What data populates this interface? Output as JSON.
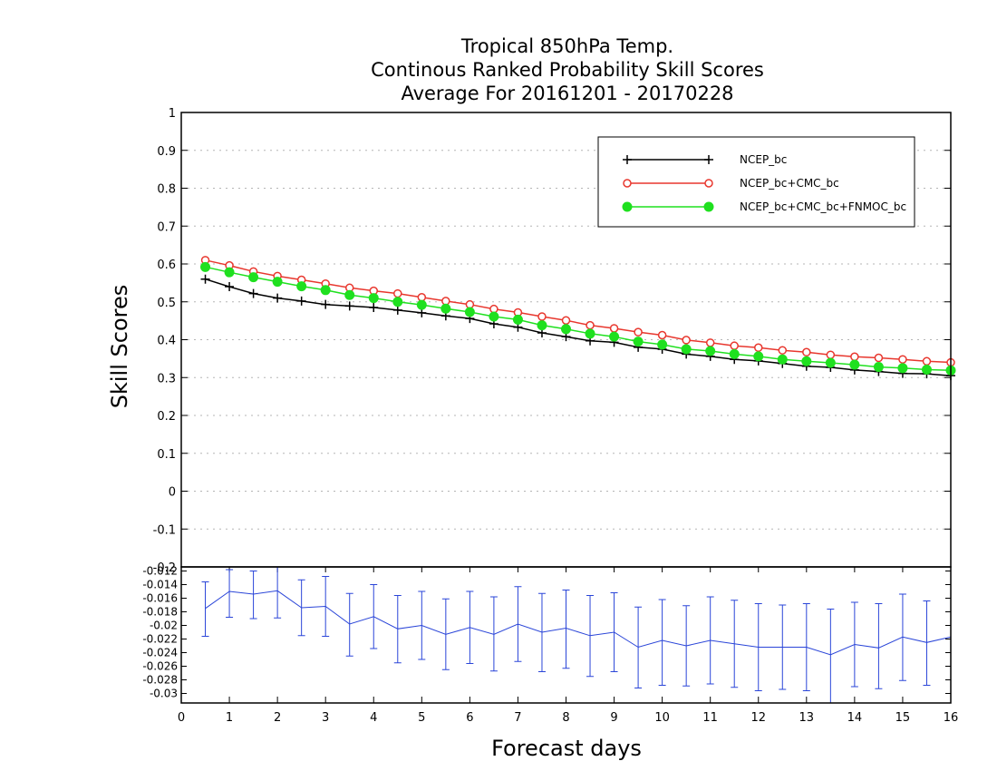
{
  "chart_data": [
    {
      "type": "line",
      "title": [
        "Tropical 850hPa Temp.",
        "Continous Ranked Probability Skill Scores",
        "Average For 20161201 - 20170228"
      ],
      "ylabel": "Skill Scores",
      "xlim": [
        0,
        16
      ],
      "ylim": [
        -0.2,
        1
      ],
      "yticks": [
        "1",
        "0.9",
        "0.8",
        "0.7",
        "0.6",
        "0.5",
        "0.4",
        "0.3",
        "0.2",
        "0.1",
        "0",
        "-0.1",
        "-0.2"
      ],
      "grid": true,
      "legend_position": "top-right",
      "x": [
        0.5,
        1,
        1.5,
        2,
        2.5,
        3,
        3.5,
        4,
        4.5,
        5,
        5.5,
        6,
        6.5,
        7,
        7.5,
        8,
        8.5,
        9,
        9.5,
        10,
        10.5,
        11,
        11.5,
        12,
        12.5,
        13,
        13.5,
        14,
        14.5,
        15,
        15.5,
        16
      ],
      "series": [
        {
          "name": "NCEP_bc",
          "color": "#000000",
          "marker": "plus",
          "values": [
            0.56,
            0.54,
            0.522,
            0.51,
            0.502,
            0.493,
            0.489,
            0.485,
            0.478,
            0.471,
            0.463,
            0.456,
            0.442,
            0.433,
            0.418,
            0.408,
            0.397,
            0.393,
            0.38,
            0.375,
            0.362,
            0.356,
            0.348,
            0.344,
            0.337,
            0.33,
            0.327,
            0.32,
            0.316,
            0.311,
            0.31,
            0.305
          ]
        },
        {
          "name": "NCEP_bc+CMC_bc",
          "color": "#e8372e",
          "marker": "open-circle",
          "values": [
            0.61,
            0.596,
            0.58,
            0.568,
            0.558,
            0.548,
            0.537,
            0.529,
            0.522,
            0.512,
            0.502,
            0.493,
            0.481,
            0.472,
            0.461,
            0.451,
            0.438,
            0.43,
            0.42,
            0.412,
            0.399,
            0.392,
            0.384,
            0.379,
            0.372,
            0.367,
            0.36,
            0.355,
            0.352,
            0.348,
            0.343,
            0.34
          ]
        },
        {
          "name": "NCEP_bc+CMC_bc+FNMOC_bc",
          "color": "#1fe01f",
          "marker": "filled-circle",
          "values": [
            0.592,
            0.578,
            0.565,
            0.553,
            0.541,
            0.531,
            0.518,
            0.51,
            0.5,
            0.492,
            0.482,
            0.473,
            0.461,
            0.453,
            0.438,
            0.428,
            0.416,
            0.408,
            0.395,
            0.387,
            0.375,
            0.37,
            0.362,
            0.356,
            0.348,
            0.343,
            0.339,
            0.334,
            0.328,
            0.325,
            0.321,
            0.319
          ]
        }
      ]
    },
    {
      "type": "line",
      "xlabel": "Forecast days",
      "xlim": [
        0,
        16
      ],
      "xticks": [
        "0",
        "1",
        "2",
        "3",
        "4",
        "5",
        "6",
        "7",
        "8",
        "9",
        "10",
        "11",
        "12",
        "13",
        "14",
        "15",
        "16"
      ],
      "ylim": [
        -0.0314,
        -0.0114
      ],
      "yticks": [
        "-0.012",
        "-0.014",
        "-0.016",
        "-0.018",
        "-0.02",
        "-0.022",
        "-0.024",
        "-0.026",
        "-0.028",
        "-0.03"
      ],
      "color": "#2a45d8",
      "x": [
        0.5,
        1,
        1.5,
        2,
        2.5,
        3,
        3.5,
        4,
        4.5,
        5,
        5.5,
        6,
        6.5,
        7,
        7.5,
        8,
        8.5,
        9,
        9.5,
        10,
        10.5,
        11,
        11.5,
        12,
        12.5,
        13,
        13.5,
        14,
        14.5,
        15,
        15.5,
        16
      ],
      "values": [
        -0.0175,
        -0.015,
        -0.0154,
        -0.0149,
        -0.0174,
        -0.0172,
        -0.0198,
        -0.0187,
        -0.0205,
        -0.02,
        -0.0213,
        -0.0203,
        -0.0213,
        -0.0198,
        -0.021,
        -0.0204,
        -0.0215,
        -0.021,
        -0.0232,
        -0.0222,
        -0.023,
        -0.0222,
        -0.0227,
        -0.0232,
        -0.0232,
        -0.0232,
        -0.0243,
        -0.0228,
        -0.0233,
        -0.0217,
        -0.0225,
        -0.0217
      ],
      "error_low": [
        -0.0216,
        -0.0188,
        -0.019,
        -0.0189,
        -0.0215,
        -0.0216,
        -0.0245,
        -0.0234,
        -0.0255,
        -0.025,
        -0.0265,
        -0.0256,
        -0.0267,
        -0.0253,
        -0.0268,
        -0.0263,
        -0.0275,
        -0.0268,
        -0.0292,
        -0.0288,
        -0.0289,
        -0.0286,
        -0.0291,
        -0.0296,
        -0.0294,
        -0.0296,
        -0.0315,
        -0.029,
        -0.0293,
        -0.0281,
        -0.0288,
        -0.0217
      ],
      "error_high": [
        -0.0136,
        -0.0118,
        -0.012,
        -0.0114,
        -0.0133,
        -0.0128,
        -0.0153,
        -0.014,
        -0.0156,
        -0.015,
        -0.0161,
        -0.015,
        -0.0158,
        -0.0143,
        -0.0153,
        -0.0148,
        -0.0156,
        -0.0152,
        -0.0173,
        -0.0162,
        -0.0171,
        -0.0158,
        -0.0163,
        -0.0168,
        -0.017,
        -0.0168,
        -0.0176,
        -0.0166,
        -0.0168,
        -0.0154,
        -0.0164,
        -0.0217
      ]
    }
  ]
}
